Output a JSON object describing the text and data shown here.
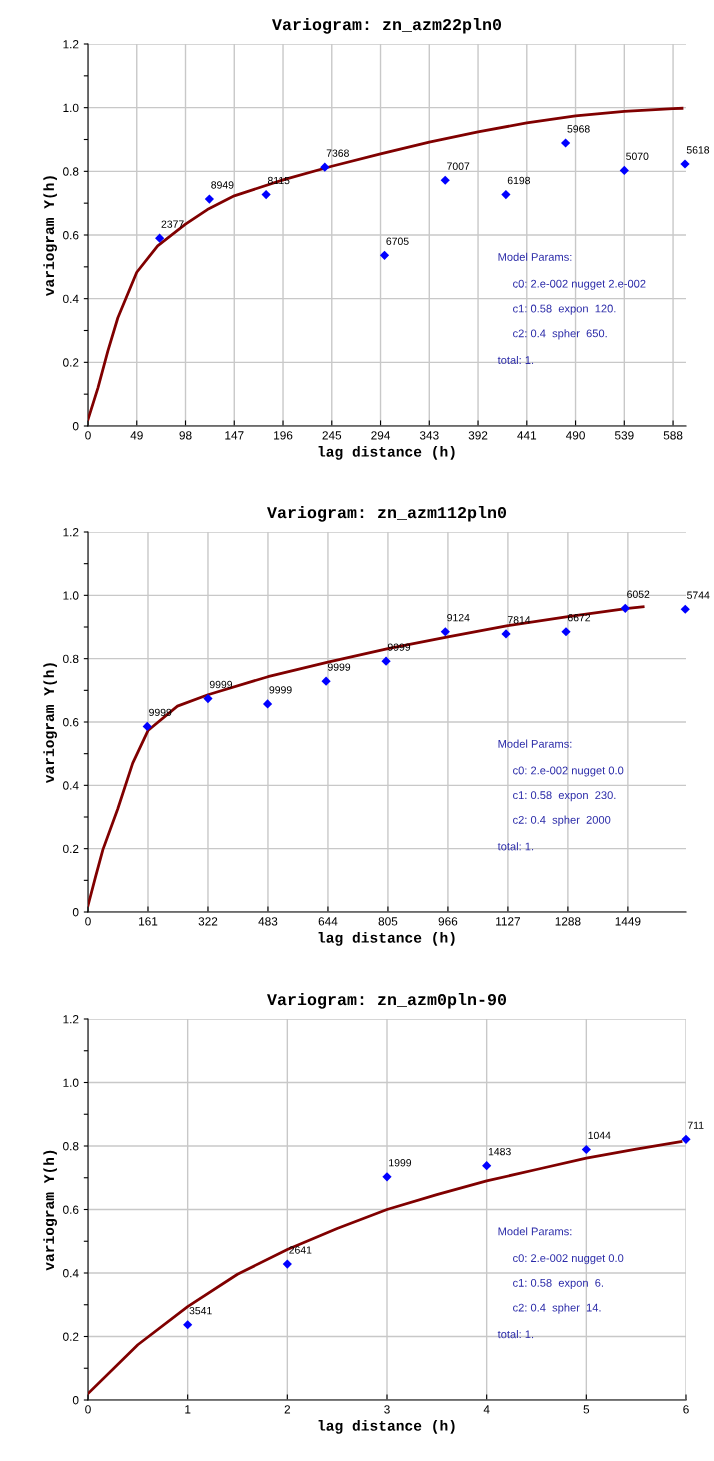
{
  "chart_data": [
    {
      "type": "scatter",
      "title": "Variogram: zn_azm22pln0",
      "xlabel": "lag distance (h)",
      "ylabel": "variogram Y(h)",
      "grid": true,
      "legend": false,
      "marker": "diamond",
      "xlim": [
        0,
        601
      ],
      "xticks": [
        0,
        49,
        98,
        147,
        196,
        245,
        294,
        343,
        392,
        441,
        490,
        539,
        588
      ],
      "ylim": [
        0,
        1.2
      ],
      "yticks": [
        0,
        {
          "value": 0.1,
          "label": null
        },
        0.2,
        {
          "value": 0.3,
          "label": null
        },
        0.4,
        {
          "value": 0.5,
          "label": null
        },
        0.6,
        {
          "value": 0.7,
          "label": null
        },
        0.8,
        {
          "value": 0.9,
          "label": null
        },
        {
          "value": 1,
          "label": "1.0"
        },
        {
          "value": 1.1,
          "label": null
        },
        1.2
      ],
      "series": [
        {
          "color": "#0000ff",
          "x": [
            72,
            122,
            179,
            238,
            298,
            359,
            420,
            480,
            539,
            600
          ],
          "values": [
            0.59,
            0.713,
            0.727,
            0.813,
            0.536,
            0.772,
            0.727,
            0.889,
            0.803,
            0.823
          ]
        },
        {
          "type": "line",
          "color": "#800000",
          "marker": "none",
          "x": [
            0,
            10,
            20,
            30,
            49,
            70,
            98,
            120,
            147,
            196,
            245,
            294,
            343,
            392,
            441,
            490,
            539,
            588,
            597
          ],
          "values": [
            0.02,
            0.12,
            0.236,
            0.34,
            0.483,
            0.566,
            0.634,
            0.68,
            0.723,
            0.773,
            0.816,
            0.855,
            0.892,
            0.924,
            0.952,
            0.974,
            0.988,
            0.997,
            0.998
          ]
        }
      ],
      "annotations": [
        {
          "text": "2377",
          "x": 72,
          "y": 0.59
        },
        {
          "text": "8949",
          "x": 122,
          "y": 0.713
        },
        {
          "text": "8115",
          "x": 179,
          "y": 0.727
        },
        {
          "text": "7368",
          "x": 238,
          "y": 0.813
        },
        {
          "text": "6705",
          "x": 298,
          "y": 0.536
        },
        {
          "text": "7007",
          "x": 359,
          "y": 0.772
        },
        {
          "text": "6198",
          "x": 420,
          "y": 0.727
        },
        {
          "text": "5968",
          "x": 480,
          "y": 0.889
        },
        {
          "text": "5070",
          "x": 539,
          "y": 0.803
        },
        {
          "text": "5618",
          "x": 600,
          "y": 0.823
        },
        "Model Params:",
        "c0: 2.e-002 nugget 2.e-002",
        "c1: 0.58  expon  120.",
        "c2: 0.4  spher  650.",
        "total: 1."
      ]
    },
    {
      "type": "scatter",
      "title": "Variogram: zn_azm112pln0",
      "xlabel": "lag distance (h)",
      "ylabel": "variogram Y(h)",
      "grid": true,
      "legend": false,
      "marker": "diamond",
      "xlim": [
        0,
        1605
      ],
      "xticks": [
        0,
        161,
        322,
        483,
        644,
        805,
        966,
        1127,
        1288,
        1449
      ],
      "ylim": [
        0,
        1.2
      ],
      "yticks": [
        0,
        {
          "value": 0.1,
          "label": null
        },
        0.2,
        {
          "value": 0.3,
          "label": null
        },
        0.4,
        {
          "value": 0.5,
          "label": null
        },
        0.6,
        {
          "value": 0.7,
          "label": null
        },
        0.8,
        {
          "value": 0.9,
          "label": null
        },
        {
          "value": 1,
          "label": "1.0"
        },
        {
          "value": 1.1,
          "label": null
        },
        1.2
      ],
      "series": [
        {
          "color": "#0000ff",
          "x": [
            159,
            322,
            482,
            639,
            800,
            959,
            1122,
            1283,
            1442,
            1603
          ],
          "values": [
            0.586,
            0.674,
            0.657,
            0.729,
            0.792,
            0.885,
            0.878,
            0.885,
            0.959,
            0.956
          ]
        },
        {
          "type": "line",
          "color": "#800000",
          "marker": "none",
          "x": [
            0,
            20,
            40,
            80,
            120,
            161,
            240,
            322,
            483,
            644,
            805,
            966,
            1127,
            1288,
            1449,
            1490
          ],
          "values": [
            0.02,
            0.11,
            0.197,
            0.326,
            0.47,
            0.573,
            0.65,
            0.686,
            0.743,
            0.789,
            0.832,
            0.869,
            0.904,
            0.933,
            0.959,
            0.964
          ]
        }
      ],
      "annotations": [
        {
          "text": "9999",
          "x": 159,
          "y": 0.586
        },
        {
          "text": "9999",
          "x": 322,
          "y": 0.674
        },
        {
          "text": "9999",
          "x": 482,
          "y": 0.657
        },
        {
          "text": "9999",
          "x": 639,
          "y": 0.729
        },
        {
          "text": "9999",
          "x": 800,
          "y": 0.792
        },
        {
          "text": "9124",
          "x": 959,
          "y": 0.885
        },
        {
          "text": "7814",
          "x": 1122,
          "y": 0.878
        },
        {
          "text": "6672",
          "x": 1283,
          "y": 0.885
        },
        {
          "text": "6052",
          "x": 1442,
          "y": 0.959
        },
        {
          "text": "5744",
          "x": 1603,
          "y": 0.956
        },
        "Model Params:",
        "c0: 2.e-002 nugget 0.0",
        "c1: 0.58  expon  230.",
        "c2: 0.4  spher  2000",
        "total: 1."
      ]
    },
    {
      "type": "scatter",
      "title": "Variogram: zn_azm0pln-90",
      "xlabel": "lag distance (h)",
      "ylabel": "variogram Y(h)",
      "grid": true,
      "legend": false,
      "marker": "diamond",
      "xlim": [
        0,
        6
      ],
      "xticks": [
        0,
        1,
        2,
        3,
        4,
        5,
        6
      ],
      "ylim": [
        0,
        1.2
      ],
      "yticks": [
        0,
        {
          "value": 0.1,
          "label": null
        },
        0.2,
        {
          "value": 0.3,
          "label": null
        },
        0.4,
        {
          "value": 0.5,
          "label": null
        },
        0.6,
        {
          "value": 0.7,
          "label": null
        },
        0.8,
        {
          "value": 0.9,
          "label": null
        },
        {
          "value": 1,
          "label": "1.0"
        },
        {
          "value": 1.1,
          "label": null
        },
        1.2
      ],
      "series": [
        {
          "color": "#0000ff",
          "x": [
            1,
            2,
            3,
            4,
            5,
            6
          ],
          "values": [
            0.237,
            0.428,
            0.703,
            0.738,
            0.789,
            0.821
          ]
        },
        {
          "type": "line",
          "color": "#800000",
          "marker": "none",
          "x": [
            0,
            0.5,
            1,
            1.5,
            2,
            2.5,
            3,
            3.5,
            4,
            4.5,
            5,
            5.5,
            5.95
          ],
          "values": [
            0.02,
            0.174,
            0.294,
            0.396,
            0.474,
            0.54,
            0.6,
            0.647,
            0.69,
            0.726,
            0.762,
            0.79,
            0.814
          ]
        }
      ],
      "annotations": [
        {
          "text": "3541",
          "x": 1,
          "y": 0.237
        },
        {
          "text": "2641",
          "x": 2,
          "y": 0.428
        },
        {
          "text": "1999",
          "x": 3,
          "y": 0.703
        },
        {
          "text": "1483",
          "x": 4,
          "y": 0.738
        },
        {
          "text": "1044",
          "x": 5,
          "y": 0.789
        },
        {
          "text": "711",
          "x": 6,
          "y": 0.821
        },
        "Model Params:",
        "c0: 2.e-002 nugget 0.0",
        "c1: 0.58  expon  6.",
        "c2: 0.4  spher  14.",
        "total: 1."
      ]
    }
  ]
}
